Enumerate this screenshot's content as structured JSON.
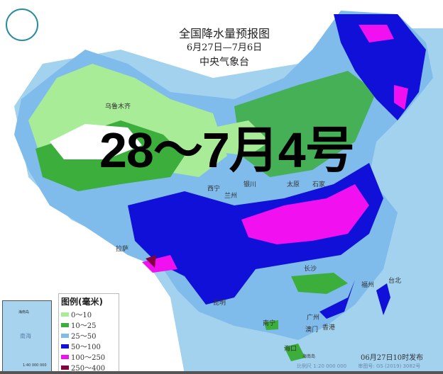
{
  "header": {
    "title": "全国降水量预报图",
    "date_range": "6月27日—7月6日",
    "issuer": "中央气象台"
  },
  "overlay_text": "28～7月4号",
  "legend": {
    "title": "图例(毫米)",
    "items": [
      {
        "label": "0～10",
        "color": "#a8ec98"
      },
      {
        "label": "10～25",
        "color": "#3cae3c"
      },
      {
        "label": "25～50",
        "color": "#7fbcec"
      },
      {
        "label": "50～100",
        "color": "#1010d8"
      },
      {
        "label": "100～250",
        "color": "#f010f0"
      },
      {
        "label": "250～400",
        "color": "#800040"
      }
    ]
  },
  "cities": [
    "乌鲁木齐",
    "银川",
    "太原",
    "石家",
    "西宁",
    "兰州",
    "拉萨",
    "昆明",
    "长沙",
    "福州",
    "台北",
    "南宁",
    "广州",
    "香港",
    "澳门",
    "海口",
    "海南岛"
  ],
  "inset": {
    "sea_label": "南海",
    "island_label": "海南岛",
    "scale": "1:40 000 000"
  },
  "footer": {
    "published": "06月27日10时发布",
    "scale": "比例尺 1:20 000 000",
    "map_number": "审图号: GS (2019) 3082号"
  },
  "logo": "cma-logo"
}
